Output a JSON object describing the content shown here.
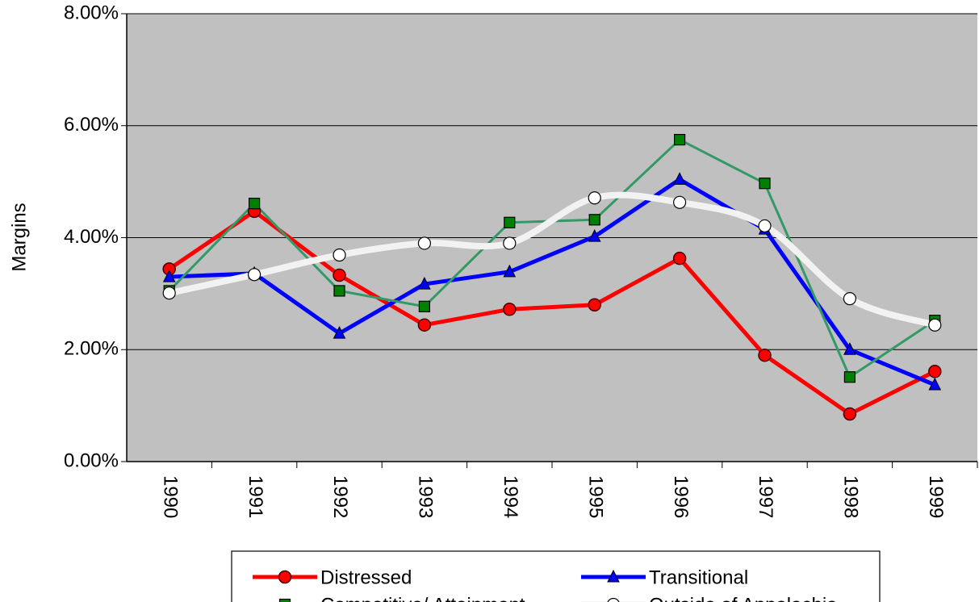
{
  "chart_data": {
    "type": "line",
    "y_label": "Margins",
    "categories": [
      "1990",
      "1991",
      "1992",
      "1993",
      "1994",
      "1995",
      "1996",
      "1997",
      "1998",
      "1999"
    ],
    "ylim": [
      0,
      8
    ],
    "yticks": [
      {
        "value": 0,
        "label": "0.00%"
      },
      {
        "value": 2,
        "label": "2.00%"
      },
      {
        "value": 4,
        "label": "4.00%"
      },
      {
        "value": 6,
        "label": "6.00%"
      },
      {
        "value": 8,
        "label": "8.00%"
      }
    ],
    "grid": true,
    "background": "#c0c0c0",
    "legend": "bottom",
    "series": [
      {
        "name": "Distressed",
        "color": "#ff0000",
        "marker": "circle",
        "values": [
          3.44,
          4.47,
          3.33,
          2.44,
          2.72,
          2.8,
          3.63,
          1.9,
          0.85,
          1.61
        ]
      },
      {
        "name": "Transitional",
        "color": "#0000ff",
        "marker": "triangle",
        "values": [
          3.3,
          3.36,
          2.29,
          3.17,
          3.39,
          4.02,
          5.04,
          4.15,
          2.0,
          1.37
        ]
      },
      {
        "name": "Competitive/ Attainment",
        "color": "#339966",
        "marker": "square",
        "values": [
          3.05,
          4.61,
          3.05,
          2.77,
          4.27,
          4.32,
          5.75,
          4.97,
          1.51,
          2.52
        ]
      },
      {
        "name": "Outside of Appalachia",
        "color": "#f2f2f2",
        "marker": "open-circle",
        "smooth": true,
        "values": [
          3.01,
          3.34,
          3.69,
          3.9,
          3.9,
          4.71,
          4.63,
          4.21,
          2.91,
          2.44
        ]
      }
    ]
  }
}
